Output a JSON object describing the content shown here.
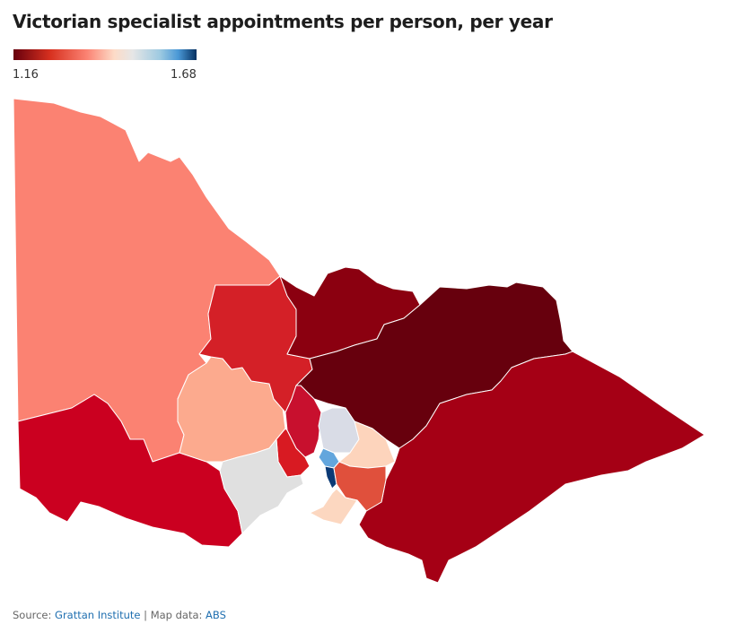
{
  "title": "Victorian specialist appointments per person, per year",
  "legend": {
    "min_label": "1.16",
    "max_label": "1.68",
    "min_value": 1.16,
    "max_value": 1.68,
    "colors": [
      "#67000d",
      "#cb181d",
      "#fb8272",
      "#fddbc7",
      "#e6e6e6",
      "#9ecae1",
      "#4a98d6",
      "#053061"
    ]
  },
  "footer": {
    "source_label": "Source:",
    "source_link": "Grattan Institute",
    "separator": "|",
    "map_label": "Map data:",
    "map_link": "ABS"
  }
}
